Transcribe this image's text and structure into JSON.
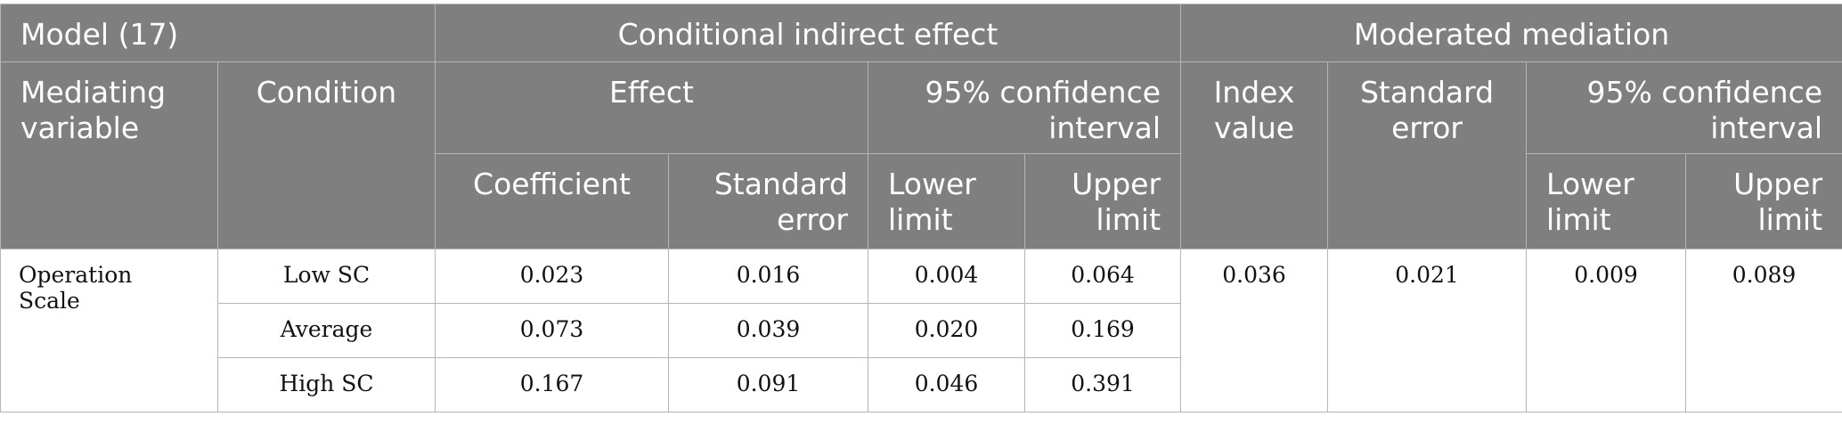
{
  "header": {
    "model": "Model (17)",
    "conditional_indirect_effect": "Conditional indirect effect",
    "moderated_mediation": "Moderated mediation",
    "mediating_variable": "Mediating variable",
    "condition": "Condition",
    "effect": "Effect",
    "ci_95_left": "95% confidence interval",
    "index_value": "Index value",
    "standard_error_right": "Standard error",
    "ci_95_right": "95% confidence interval",
    "coefficient": "Coefficient",
    "standard_error": "Standard error",
    "lower_limit": "Lower limit",
    "upper_limit": "Upper limit",
    "lower_limit_right": "Lower limit",
    "upper_limit_right": "Upper limit"
  },
  "body": {
    "mediating_variable": "Operation Scale",
    "rows": [
      {
        "condition": "Low SC",
        "coefficient": "0.023",
        "standard_error": "0.016",
        "lower": "0.004",
        "upper": "0.064"
      },
      {
        "condition": "Average",
        "coefficient": "0.073",
        "standard_error": "0.039",
        "lower": "0.020",
        "upper": "0.169"
      },
      {
        "condition": "High SC",
        "coefficient": "0.167",
        "standard_error": "0.091",
        "lower": "0.046",
        "upper": "0.391"
      }
    ],
    "moderated": {
      "index_value": "0.036",
      "standard_error": "0.021",
      "lower": "0.009",
      "upper": "0.089"
    }
  },
  "colors": {
    "header_bg": "#7f7f7f",
    "header_text": "#ffffff",
    "border": "#b5b5b5"
  }
}
